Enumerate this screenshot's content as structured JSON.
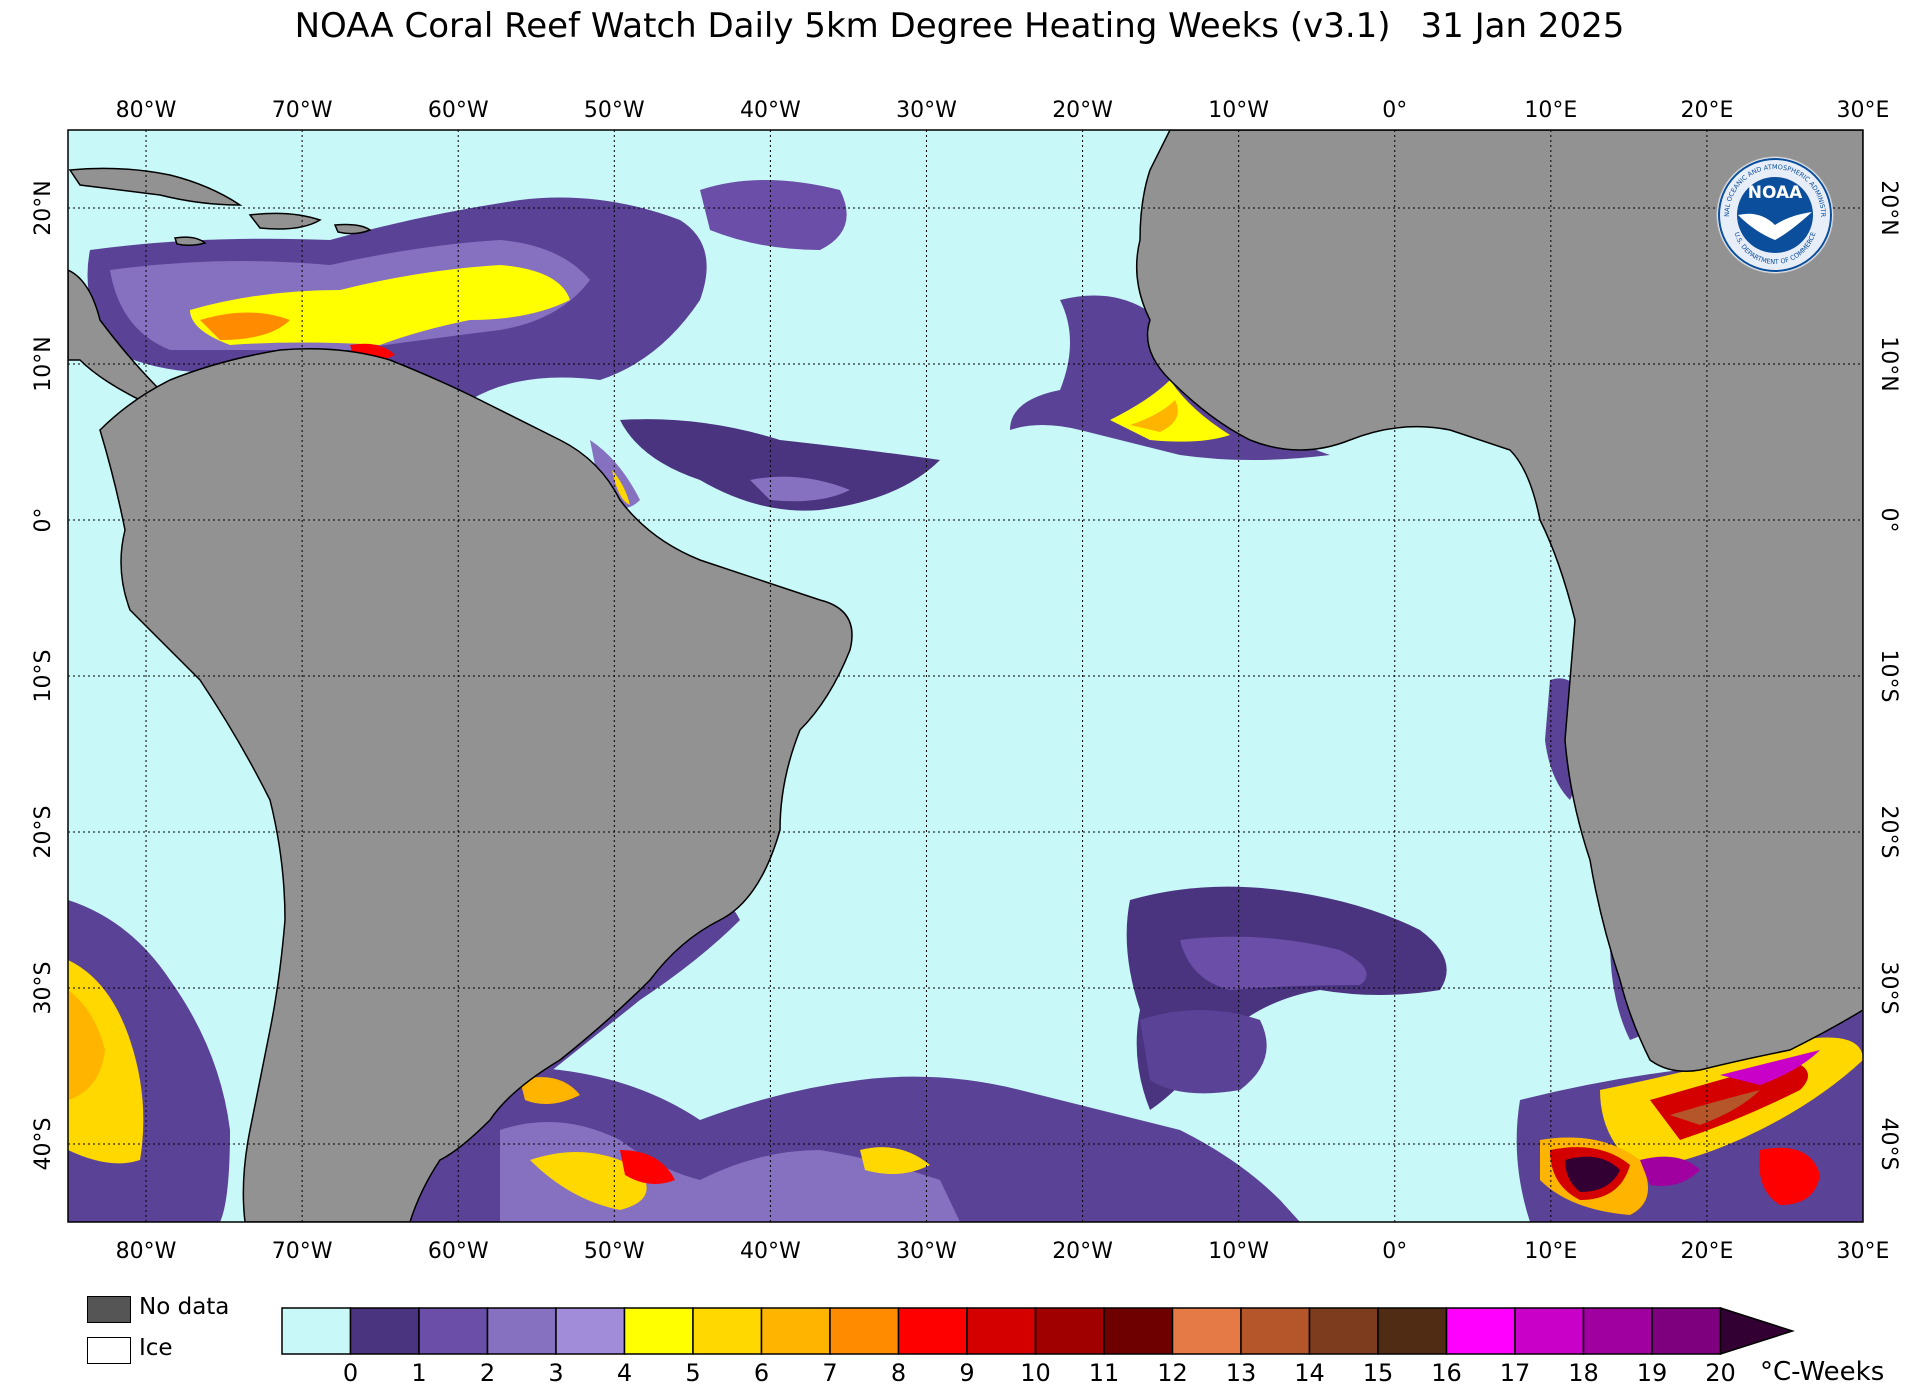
{
  "title": {
    "main": "NOAA Coral Reef Watch Daily 5km Degree Heating Weeks  (v3.1)",
    "date": "31 Jan 2025"
  },
  "axes": {
    "lon_ticks": [
      "80°W",
      "70°W",
      "60°W",
      "50°W",
      "40°W",
      "30°W",
      "20°W",
      "10°W",
      "0°",
      "10°E",
      "20°E",
      "30°E"
    ],
    "lat_ticks": [
      "20°N",
      "10°N",
      "0°",
      "10°S",
      "20°S",
      "30°S",
      "40°S"
    ],
    "lon_values": [
      -80,
      -70,
      -60,
      -50,
      -40,
      -30,
      -20,
      -10,
      0,
      10,
      20,
      30
    ],
    "lat_values": [
      20,
      10,
      0,
      -10,
      -20,
      -30,
      -40
    ],
    "lon_range": [
      -85,
      30
    ],
    "lat_range": [
      -45,
      25
    ]
  },
  "logo": {
    "text": "NOAA",
    "ring_top": "NATIONAL OCEANIC AND ATMOSPHERIC ADMINISTRATION",
    "ring_bottom": "U.S. DEPARTMENT OF COMMERCE"
  },
  "key": {
    "no_data": "No data",
    "ice": "Ice",
    "no_data_color": "#555555",
    "ice_color": "#ffffff"
  },
  "colorbar": {
    "unit": "°C-Weeks",
    "labels": [
      "0",
      "1",
      "2",
      "3",
      "4",
      "5",
      "6",
      "7",
      "8",
      "9",
      "10",
      "11",
      "12",
      "13",
      "14",
      "15",
      "16",
      "17",
      "18",
      "19",
      "20"
    ],
    "colors": [
      "#c8f8f8",
      "#4a3480",
      "#6a4ea8",
      "#8670c0",
      "#a08cd8",
      "#ffff00",
      "#ffd800",
      "#ffb400",
      "#ff8c00",
      "#ff0000",
      "#d40000",
      "#a00000",
      "#6e0000",
      "#e67a46",
      "#b4552a",
      "#7e3c1e",
      "#512c14",
      "#ff00ff",
      "#c800c8",
      "#a000a0",
      "#7e007e"
    ],
    "overflow_color": "#320032"
  },
  "map_colors": {
    "ocean": "#c8f8f8",
    "land": "#929292",
    "grid": "#000000"
  }
}
